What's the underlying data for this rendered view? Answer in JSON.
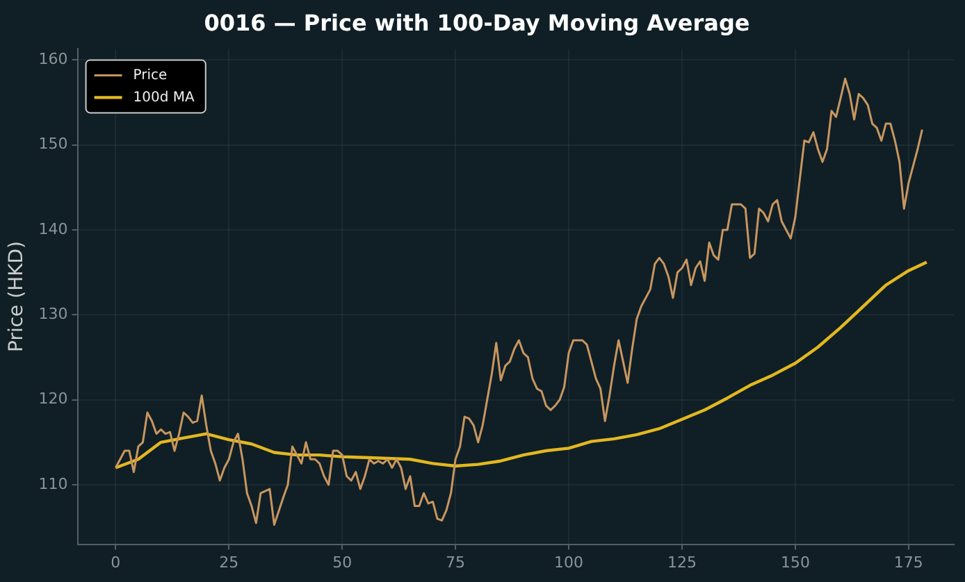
{
  "chart_data": {
    "type": "line",
    "title": "0016 — Price with 100-Day Moving Average",
    "ylabel": "Price (HKD)",
    "xlim": [
      -8.4,
      185
    ],
    "xticks": [
      0,
      25,
      50,
      75,
      100,
      125,
      150,
      175
    ],
    "ylim": [
      103,
      161.3
    ],
    "yticks": [
      110,
      120,
      130,
      140,
      150,
      160
    ],
    "grid": true,
    "legend": "top left",
    "marker": "none",
    "line_style": "solid",
    "series": [
      {
        "name": "Price",
        "color": "#c8965f",
        "x": [
          0,
          2,
          3,
          4,
          5,
          6,
          7,
          8,
          9,
          10,
          11,
          12,
          13,
          14,
          15,
          16,
          17,
          18,
          19,
          20,
          21,
          22,
          23,
          24,
          25,
          26,
          27,
          28,
          29,
          30,
          31,
          32,
          34,
          35,
          37,
          38,
          39,
          41,
          42,
          43,
          44,
          45,
          46,
          47,
          48,
          49,
          50,
          51,
          52,
          53,
          54,
          55,
          56,
          57,
          58,
          59,
          60,
          61,
          62,
          63,
          64,
          65,
          66,
          67,
          68,
          69,
          70,
          71,
          72,
          73,
          74,
          75,
          76,
          77,
          78,
          79,
          80,
          81,
          82,
          83,
          84,
          85,
          86,
          87,
          88,
          89,
          90,
          91,
          92,
          93,
          94,
          95,
          96,
          97,
          98,
          99,
          100,
          101,
          102,
          103,
          104,
          105,
          106,
          107,
          108,
          109,
          110,
          111,
          112,
          113,
          114,
          115,
          116,
          117,
          118,
          119,
          120,
          121,
          122,
          123,
          124,
          125,
          126,
          127,
          128,
          129,
          130,
          131,
          132,
          133,
          134,
          135,
          136,
          137,
          138,
          139,
          140,
          141,
          142,
          143,
          144,
          145,
          146,
          147,
          148,
          149,
          150,
          151,
          152,
          153,
          154,
          155,
          156,
          157,
          158,
          159,
          160,
          161,
          162,
          163,
          164,
          165,
          166,
          167,
          168,
          169,
          170,
          171,
          172,
          173,
          174,
          175,
          176,
          177,
          178
        ],
        "values": [
          112,
          114,
          114,
          111.5,
          114.5,
          115,
          118.5,
          117.5,
          116,
          116.5,
          116,
          116.2,
          114,
          116,
          118.5,
          118,
          117.3,
          117.5,
          120.5,
          117,
          114,
          112.5,
          110.5,
          112,
          113,
          115,
          116,
          113,
          109,
          107.5,
          105.5,
          109,
          109.5,
          105.3,
          108.5,
          110,
          114.5,
          112.5,
          115,
          113,
          113,
          112.5,
          111,
          110,
          114,
          114,
          113.5,
          111,
          110.5,
          111.5,
          109.5,
          111,
          113,
          112.5,
          112.8,
          112.5,
          113,
          112,
          113,
          112,
          109.5,
          111,
          107.5,
          107.5,
          109,
          107.8,
          108,
          106,
          105.8,
          107,
          109,
          113,
          114.5,
          118,
          117.8,
          117,
          115,
          117,
          120,
          123,
          126.7,
          122.3,
          124,
          124.5,
          126,
          127,
          125.5,
          125,
          122.5,
          121.3,
          121,
          119.3,
          118.8,
          119.3,
          120,
          121.5,
          125.5,
          127,
          127,
          127,
          126.5,
          124.5,
          122.5,
          121.3,
          117.5,
          120.5,
          124,
          127,
          124.5,
          122,
          126,
          129.5,
          131,
          132,
          133,
          136,
          136.7,
          136,
          134.5,
          132,
          135,
          135.5,
          136.5,
          133.5,
          135.5,
          136.3,
          134,
          138.5,
          137,
          136.5,
          140,
          140,
          143,
          143,
          143,
          142.5,
          136.7,
          137.2,
          142.5,
          142,
          141,
          143,
          143.5,
          141,
          140,
          139,
          141.5,
          146,
          150.5,
          150.3,
          151.5,
          149.5,
          148,
          149.5,
          154,
          153.3,
          155.5,
          157.8,
          156,
          153,
          156,
          155.5,
          154.7,
          152.5,
          152,
          150.5,
          152.5,
          152.5,
          150.5,
          148,
          142.5,
          145.5,
          147.5,
          149.5,
          151.8
        ]
      },
      {
        "name": "100d MA",
        "color": "#e3b81f",
        "x": [
          0,
          5,
          10,
          15,
          20,
          25,
          30,
          35,
          40,
          45,
          50,
          55,
          60,
          65,
          70,
          75,
          80,
          85,
          90,
          95,
          100,
          105,
          110,
          115,
          120,
          125,
          130,
          135,
          140,
          145,
          150,
          155,
          160,
          165,
          170,
          175,
          179
        ],
        "values": [
          112,
          113,
          115,
          115.5,
          116,
          115.3,
          114.8,
          113.8,
          113.5,
          113.5,
          113.3,
          113.2,
          113.1,
          113,
          112.5,
          112.2,
          112.4,
          112.8,
          113.5,
          114,
          114.3,
          115.1,
          115.4,
          115.9,
          116.6,
          117.7,
          118.8,
          120.2,
          121.7,
          122.9,
          124.3,
          126.2,
          128.5,
          131,
          133.5,
          135.2,
          136.2
        ]
      }
    ]
  }
}
